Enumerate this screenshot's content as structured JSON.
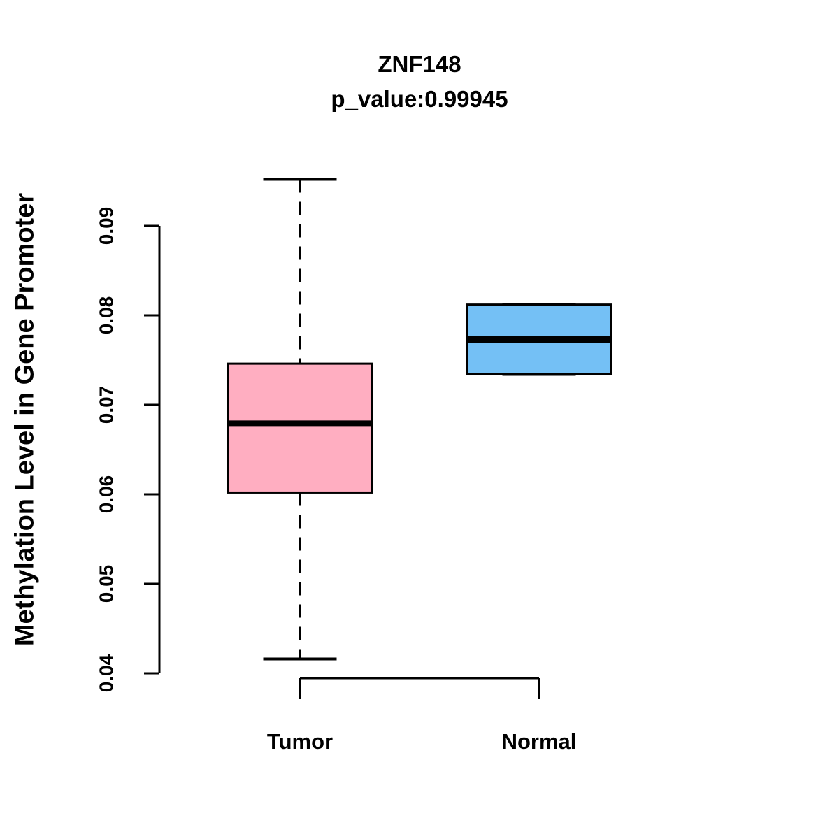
{
  "chart_data": {
    "type": "boxplot",
    "title": "ZNF148",
    "subtitle": "p_value:0.99945",
    "p_value": "0.99945",
    "ylabel": "Methylation Level in Gene Promoter",
    "xlabel": "",
    "categories": [
      "Tumor",
      "Normal"
    ],
    "y_tick_labels": [
      "0.04",
      "0.05",
      "0.06",
      "0.07",
      "0.08",
      "0.09"
    ],
    "y_ticks": [
      0.04,
      0.05,
      0.06,
      0.07,
      0.08,
      0.09
    ],
    "axis_range": [
      0.04,
      0.09
    ],
    "grid": false,
    "legend": "none",
    "series": [
      {
        "name": "Tumor",
        "color": "#FFAEC1",
        "min": 0.0416,
        "q1": 0.0602,
        "median": 0.0679,
        "q3": 0.0746,
        "max": 0.0952
      },
      {
        "name": "Normal",
        "color": "#74C0F5",
        "min": 0.0734,
        "q1": 0.0734,
        "median": 0.0773,
        "q3": 0.0812,
        "max": 0.0812
      }
    ],
    "colors": {
      "stroke": "#000000",
      "background": "#FFFFFF",
      "tumor_fill": "#FFAEC1",
      "normal_fill": "#74C0F5"
    }
  }
}
